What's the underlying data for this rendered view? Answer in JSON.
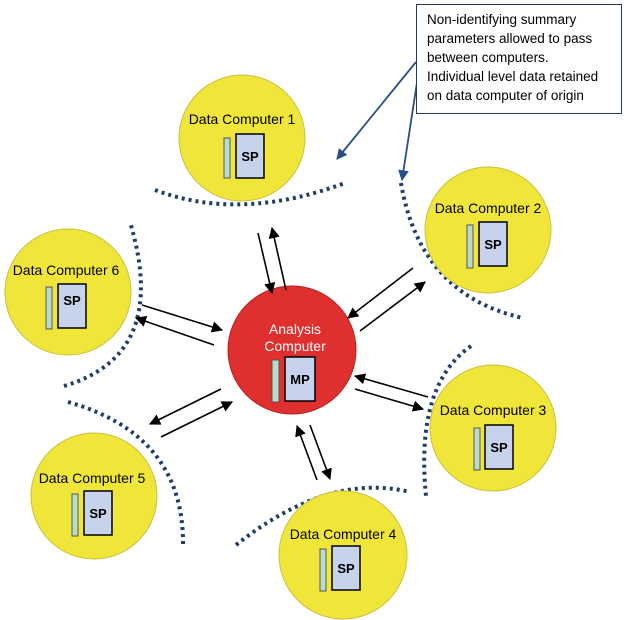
{
  "central": {
    "title_line1": "Analysis",
    "title_line2": "Computer",
    "program_label": "MP",
    "color": "#e02f2f",
    "title_color": "#ffffff"
  },
  "computers": [
    {
      "label": "Data Computer 1",
      "program_label": "SP"
    },
    {
      "label": "Data Computer 2",
      "program_label": "SP"
    },
    {
      "label": "Data Computer 3",
      "program_label": "SP"
    },
    {
      "label": "Data Computer 4",
      "program_label": "SP"
    },
    {
      "label": "Data Computer 5",
      "program_label": "SP"
    },
    {
      "label": "Data Computer 6",
      "program_label": "SP"
    }
  ],
  "callout": {
    "lines": [
      "Non-identifying summary",
      "parameters allowed to pass",
      "between computers.",
      "Individual level data retained",
      "on data computer of origin"
    ]
  },
  "colors": {
    "data_computer": "#f0e63a",
    "boundary": "#1f3c6b",
    "callout_arrow": "#2a4e86",
    "doc_fill": "#c7d3ec",
    "side_bar": "#b7dccc"
  }
}
